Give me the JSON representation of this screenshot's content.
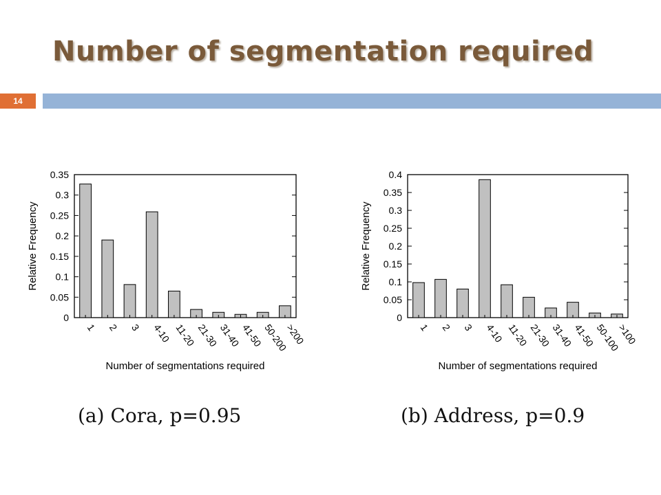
{
  "slide": {
    "title": "Number of segmentation required",
    "number": "14"
  },
  "colors": {
    "bar_fill": "#c0c0c0",
    "title": "#7a5a3a",
    "number_badge": "#e06f34",
    "header_bar": "#95b3d7"
  },
  "chart_data": [
    {
      "type": "bar",
      "caption": "(a) Cora, p=0.95",
      "xlabel": "Number of segmentations required",
      "ylabel": "Relative Frequency",
      "categories": [
        "1",
        "2",
        "3",
        "4-10",
        "11-20",
        "21-30",
        "31-40",
        "41-50",
        "50-200",
        ">200"
      ],
      "values": [
        0.327,
        0.19,
        0.081,
        0.259,
        0.065,
        0.02,
        0.013,
        0.008,
        0.013,
        0.029
      ],
      "ylim": [
        0,
        0.35
      ],
      "yticks": [
        0,
        0.05,
        0.1,
        0.15,
        0.2,
        0.25,
        0.3,
        0.35
      ],
      "ytick_labels": [
        "0",
        "0.05",
        "0.1",
        "0.15",
        "0.2",
        "0.25",
        "0.3",
        "0.35"
      ],
      "grid": false
    },
    {
      "type": "bar",
      "caption": "(b) Address, p=0.9",
      "xlabel": "Number of segmentations required",
      "ylabel": "Relative Frequency",
      "categories": [
        "1",
        "2",
        "3",
        "4-10",
        "11-20",
        "21-30",
        "31-40",
        "41-50",
        "50-100",
        ">100"
      ],
      "values": [
        0.098,
        0.107,
        0.08,
        0.386,
        0.092,
        0.057,
        0.027,
        0.043,
        0.013,
        0.01
      ],
      "ylim": [
        0,
        0.4
      ],
      "yticks": [
        0,
        0.05,
        0.1,
        0.15,
        0.2,
        0.25,
        0.3,
        0.35,
        0.4
      ],
      "ytick_labels": [
        "0",
        "0.05",
        "0.1",
        "0.15",
        "0.2",
        "0.25",
        "0.3",
        "0.35",
        "0.4"
      ],
      "grid": false
    }
  ]
}
